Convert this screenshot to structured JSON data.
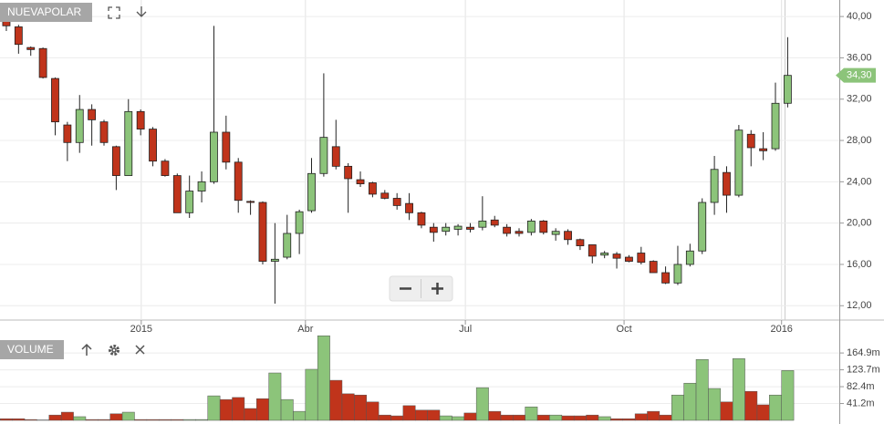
{
  "chart_data": [
    {
      "type": "candlestick",
      "title": "NUEVAPOLAR",
      "open": [
        40.0,
        39.0,
        37.0,
        36.9,
        34.0,
        29.5,
        27.8,
        31.0,
        29.8,
        27.4,
        24.6,
        30.8,
        29.1,
        26.0,
        24.6,
        21.0,
        23.1,
        24.0,
        28.8,
        25.9,
        22.1,
        22.0,
        16.3,
        16.7,
        19.0,
        21.2,
        24.8,
        27.4,
        25.5,
        24.2,
        23.9,
        22.9,
        22.4,
        21.9,
        21.0,
        19.6,
        19.2,
        19.4,
        19.6,
        19.6,
        20.3,
        19.6,
        19.2,
        19.1,
        20.2,
        18.9,
        19.2,
        18.4,
        17.9,
        16.9,
        17.0,
        16.7,
        17.1,
        16.3,
        15.2,
        14.2,
        16.0,
        17.3,
        22.0,
        24.9,
        22.7,
        28.6,
        27.2,
        27.2,
        31.6
      ],
      "high": [
        40.5,
        39.2,
        37.1,
        37.0,
        34.1,
        29.8,
        32.4,
        31.5,
        30.0,
        27.5,
        32.0,
        31.0,
        29.3,
        26.2,
        24.8,
        24.6,
        25.0,
        39.1,
        30.4,
        26.3,
        22.2,
        22.1,
        20.0,
        20.8,
        21.3,
        26.3,
        34.5,
        30.0,
        25.8,
        25.0,
        24.0,
        23.2,
        22.9,
        22.9,
        21.1,
        20.0,
        20.0,
        19.9,
        20.0,
        22.6,
        20.7,
        19.9,
        19.5,
        20.4,
        20.3,
        19.5,
        19.4,
        18.5,
        17.9,
        17.3,
        17.2,
        16.9,
        17.7,
        16.4,
        15.8,
        17.8,
        18.0,
        22.4,
        26.5,
        25.5,
        29.5,
        29.0,
        28.8,
        33.6,
        38.0
      ],
      "low": [
        38.6,
        36.4,
        36.2,
        34.0,
        28.5,
        26.0,
        26.8,
        27.5,
        27.5,
        23.2,
        24.6,
        28.5,
        25.5,
        24.5,
        21.0,
        20.5,
        22.0,
        23.8,
        25.2,
        21.0,
        20.8,
        16.0,
        12.2,
        16.5,
        17.0,
        21.0,
        24.5,
        25.2,
        21.0,
        23.5,
        22.5,
        22.3,
        21.3,
        20.3,
        19.5,
        18.2,
        18.8,
        18.8,
        19.1,
        19.3,
        19.6,
        18.7,
        18.7,
        18.8,
        18.9,
        18.3,
        17.9,
        17.4,
        16.1,
        16.6,
        15.6,
        16.2,
        16.0,
        15.2,
        14.1,
        14.0,
        15.8,
        17.0,
        20.8,
        21.0,
        22.5,
        25.5,
        26.1,
        27.0,
        31.2
      ],
      "close": [
        39.1,
        37.3,
        36.8,
        34.1,
        29.8,
        27.8,
        31.0,
        30.0,
        27.8,
        24.6,
        30.8,
        29.1,
        26.0,
        24.6,
        21.0,
        23.1,
        24.0,
        28.8,
        25.9,
        22.2,
        22.0,
        16.3,
        16.5,
        19.0,
        21.1,
        24.8,
        28.3,
        25.5,
        24.3,
        23.8,
        22.8,
        22.4,
        21.7,
        21.0,
        19.8,
        19.1,
        19.6,
        19.7,
        19.4,
        20.2,
        19.8,
        19.0,
        19.0,
        20.2,
        19.1,
        19.2,
        18.4,
        17.8,
        16.8,
        17.1,
        16.6,
        16.3,
        16.2,
        15.2,
        14.2,
        16.0,
        17.3,
        22.0,
        25.2,
        22.7,
        29.0,
        27.3,
        27.0,
        31.6,
        34.3
      ],
      "up_color": "#8cc47a",
      "down_color": "#c0341b",
      "last_price": {
        "value": 34.3,
        "label": "34,30"
      },
      "xlim": [
        -0.52,
        68.23
      ],
      "xticks": [
        {
          "value": 11.05,
          "label": "2015"
        },
        {
          "value": 24.5,
          "label": "Abr"
        },
        {
          "value": 37.6,
          "label": "Jul"
        },
        {
          "value": 50.6,
          "label": "Oct"
        },
        {
          "value": 63.5,
          "label": "2016"
        }
      ],
      "ylim": [
        10.7,
        41.6
      ],
      "yticks": [
        {
          "value": 12,
          "label": "12,00"
        },
        {
          "value": 16,
          "label": "16,00"
        },
        {
          "value": 20,
          "label": "20,00"
        },
        {
          "value": 24,
          "label": "24,00"
        },
        {
          "value": 28,
          "label": "28,00"
        },
        {
          "value": 32,
          "label": "32,00"
        },
        {
          "value": 36,
          "label": "36,00"
        },
        {
          "value": 40,
          "label": "40,00"
        }
      ],
      "grid": true
    },
    {
      "type": "bar",
      "title": "VOLUME",
      "values": [
        4,
        4,
        2,
        1,
        13,
        20,
        9,
        2,
        2,
        16,
        20,
        2,
        2,
        2,
        2,
        2,
        2,
        60,
        51,
        56,
        29,
        53,
        116,
        51,
        22,
        125,
        207,
        98,
        65,
        62,
        45,
        13,
        11,
        36,
        25,
        25,
        11,
        9,
        18,
        80,
        22,
        13,
        13,
        33,
        13,
        13,
        11,
        11,
        13,
        9,
        4,
        4,
        16,
        22,
        13,
        62,
        91,
        149,
        78,
        45,
        151,
        71,
        38,
        62,
        122
      ],
      "ylim": [
        0,
        212
      ],
      "yticks": [
        {
          "value": 41.2,
          "label": "41.2m"
        },
        {
          "value": 82.4,
          "label": "82.4m"
        },
        {
          "value": 123.7,
          "label": "123.7m"
        },
        {
          "value": 164.9,
          "label": "164.9m"
        }
      ],
      "grid": true
    }
  ]
}
